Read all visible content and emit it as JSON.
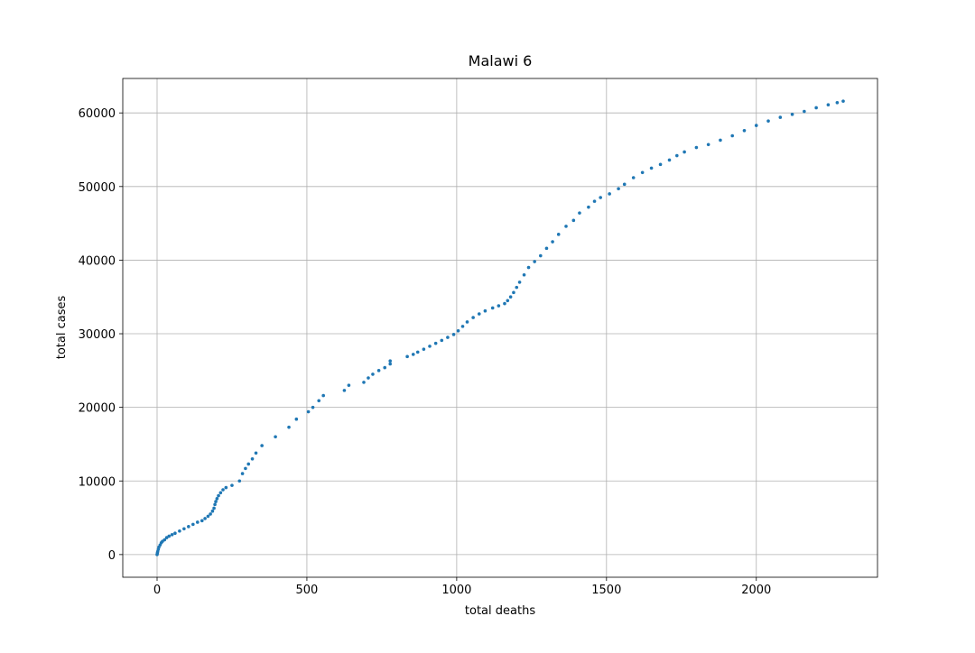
{
  "chart_data": {
    "type": "scatter",
    "title": "Malawi 6",
    "xlabel": "total deaths",
    "ylabel": "total cases",
    "color": "#1f77b4",
    "grid": true,
    "xlim": [
      -114.5,
      2404.5
    ],
    "xticks": [
      0,
      500,
      1000,
      1500,
      2000
    ],
    "ylim": [
      -3080,
      64680
    ],
    "yticks": [
      0,
      10000,
      20000,
      30000,
      40000,
      50000,
      60000
    ],
    "x": [
      0,
      1,
      2,
      4,
      6,
      10,
      14,
      18,
      25,
      32,
      40,
      50,
      60,
      75,
      90,
      105,
      120,
      135,
      150,
      160,
      170,
      178,
      185,
      190,
      193,
      196,
      200,
      205,
      212,
      220,
      230,
      250,
      275,
      285,
      295,
      305,
      318,
      330,
      350,
      395,
      440,
      465,
      505,
      520,
      540,
      555,
      625,
      640,
      690,
      705,
      720,
      740,
      760,
      778,
      778,
      835,
      855,
      870,
      890,
      910,
      930,
      950,
      970,
      990,
      1005,
      1020,
      1035,
      1055,
      1075,
      1095,
      1120,
      1140,
      1160,
      1170,
      1180,
      1190,
      1200,
      1210,
      1225,
      1240,
      1260,
      1280,
      1300,
      1320,
      1340,
      1365,
      1390,
      1410,
      1440,
      1460,
      1480,
      1510,
      1540,
      1560,
      1590,
      1620,
      1650,
      1680,
      1710,
      1735,
      1760,
      1800,
      1840,
      1880,
      1920,
      1960,
      2000,
      2040,
      2080,
      2120,
      2160,
      2200,
      2240,
      2270,
      2290
    ],
    "values": [
      0,
      200,
      400,
      700,
      1000,
      1300,
      1600,
      1800,
      2000,
      2300,
      2500,
      2700,
      2900,
      3200,
      3500,
      3800,
      4100,
      4400,
      4600,
      4900,
      5200,
      5500,
      5900,
      6300,
      6800,
      7200,
      7600,
      8000,
      8400,
      8800,
      9100,
      9400,
      10000,
      11000,
      11700,
      12300,
      13000,
      13800,
      14800,
      16000,
      17300,
      18400,
      19400,
      20000,
      20900,
      21600,
      22300,
      23000,
      23400,
      24000,
      24500,
      25000,
      25400,
      25900,
      26300,
      26900,
      27200,
      27500,
      27900,
      28300,
      28700,
      29100,
      29500,
      29900,
      30400,
      31000,
      31600,
      32200,
      32700,
      33100,
      33500,
      33800,
      34100,
      34500,
      35000,
      35600,
      36300,
      37000,
      38000,
      39000,
      39800,
      40600,
      41600,
      42500,
      43500,
      44600,
      45400,
      46400,
      47200,
      48000,
      48500,
      49000,
      49700,
      50300,
      51200,
      51900,
      52500,
      53000,
      53600,
      54200,
      54700,
      55300,
      55700,
      56300,
      56900,
      57600,
      58300,
      58900,
      59400,
      59800,
      60200,
      60700,
      61100,
      61400,
      61600
    ]
  }
}
